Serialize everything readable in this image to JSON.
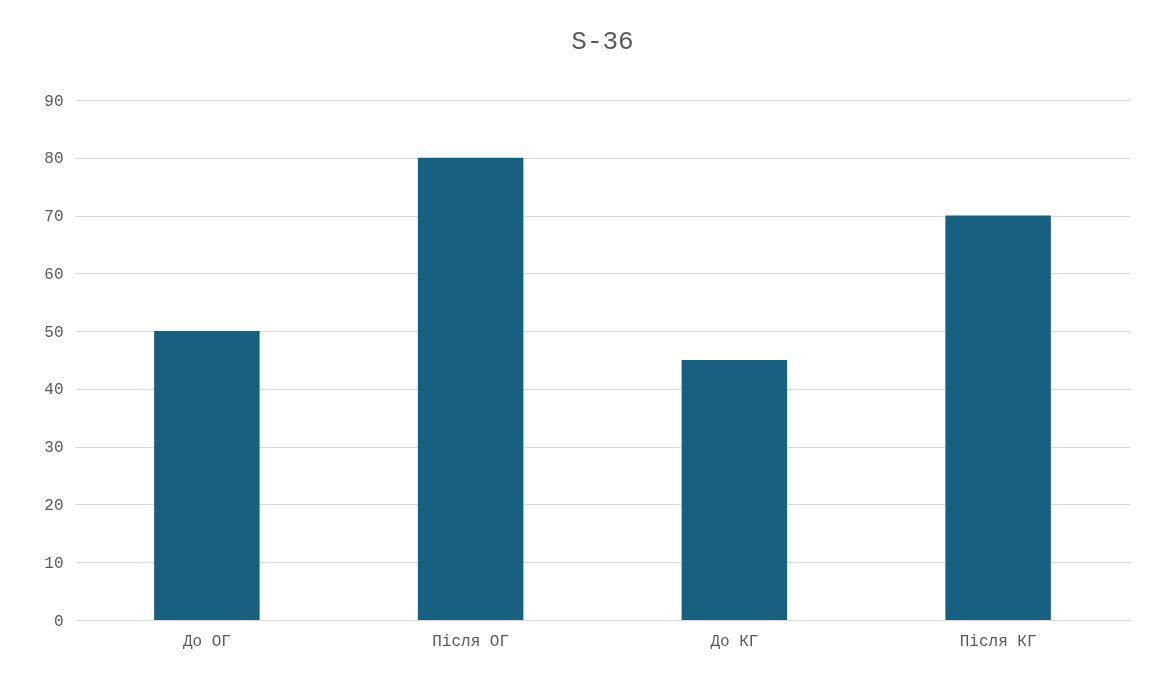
{
  "chart_data": {
    "type": "bar",
    "title": "S-36",
    "categories": [
      "До ОГ",
      "Після ОГ",
      "До КГ",
      "Після КГ"
    ],
    "values": [
      50,
      80,
      45,
      70
    ],
    "color": "#17607f",
    "ylim": [
      0,
      90
    ],
    "yticks": [
      0,
      10,
      20,
      30,
      40,
      50,
      60,
      70,
      80,
      90
    ],
    "grid": "y"
  }
}
